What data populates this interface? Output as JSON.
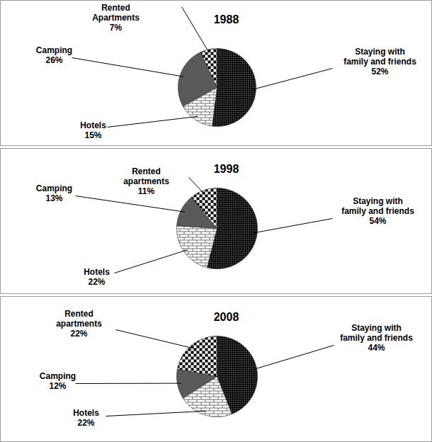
{
  "chart_data": [
    {
      "type": "pie",
      "title": "1988",
      "categories": [
        "Staying with\nfamily and friends",
        "Hotels",
        "Camping",
        "Rented\nApartments"
      ],
      "values": [
        52,
        15,
        26,
        7
      ],
      "value_labels": [
        "52%",
        "15%",
        "26%",
        "7%"
      ],
      "colors": [
        "#000000",
        "#6e6e6e",
        "#595959",
        "#000000"
      ],
      "data_labels": true
    },
    {
      "type": "pie",
      "title": "1998",
      "categories": [
        "Staying with\nfamily and friends",
        "Hotels",
        "Camping",
        "Rented\napartments"
      ],
      "values": [
        54,
        22,
        13,
        11
      ],
      "value_labels": [
        "54%",
        "22%",
        "13%",
        "11%"
      ],
      "colors": [
        "#000000",
        "#6e6e6e",
        "#595959",
        "#000000"
      ],
      "data_labels": true
    },
    {
      "type": "pie",
      "title": "2008",
      "categories": [
        "Staying with\nfamily and friends",
        "Hotels",
        "Camping",
        "Rented\napartments"
      ],
      "values": [
        44,
        22,
        12,
        22
      ],
      "value_labels": [
        "44%",
        "22%",
        "12%",
        "22%"
      ],
      "colors": [
        "#000000",
        "#6e6e6e",
        "#595959",
        "#000000"
      ],
      "data_labels": true
    }
  ]
}
